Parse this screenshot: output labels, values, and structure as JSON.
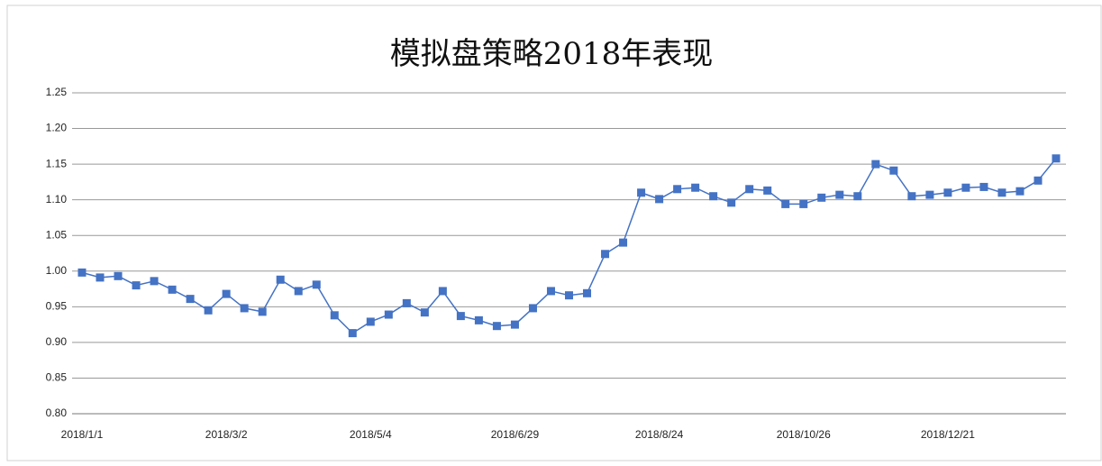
{
  "chart_data": {
    "type": "line",
    "title": "模拟盘策略2018年表现",
    "categories": [
      "2018/1/1",
      null,
      null,
      null,
      null,
      null,
      null,
      null,
      "2018/3/2",
      null,
      null,
      null,
      null,
      null,
      null,
      null,
      "2018/5/4",
      null,
      null,
      null,
      null,
      null,
      null,
      null,
      "2018/6/29",
      null,
      null,
      null,
      null,
      null,
      null,
      null,
      "2018/8/24",
      null,
      null,
      null,
      null,
      null,
      null,
      null,
      "2018/10/26",
      null,
      null,
      null,
      null,
      null,
      null,
      null,
      "2018/12/21",
      null,
      null,
      null,
      null,
      null,
      null
    ],
    "series": [
      {
        "color": "#4472c4",
        "values": [
          0.998,
          0.991,
          0.993,
          0.98,
          0.986,
          0.974,
          0.961,
          0.945,
          0.968,
          0.948,
          0.943,
          0.988,
          0.972,
          0.981,
          0.938,
          0.913,
          0.929,
          0.939,
          0.955,
          0.942,
          0.972,
          0.937,
          0.931,
          0.923,
          0.925,
          0.948,
          0.972,
          0.966,
          0.969,
          1.024,
          1.04,
          1.11,
          1.101,
          1.115,
          1.117,
          1.105,
          1.096,
          1.115,
          1.113,
          1.094,
          1.094,
          1.103,
          1.107,
          1.105,
          1.15,
          1.141,
          1.105,
          1.107,
          1.11,
          1.117,
          1.118,
          1.11,
          1.112,
          1.127,
          1.158
        ]
      }
    ],
    "ylim": [
      0.8,
      1.25
    ],
    "yticks": [
      {
        "value": 0.8,
        "label": "0.80"
      },
      0.85,
      {
        "value": 0.9,
        "label": "0.90"
      },
      0.95,
      {
        "value": 1.0,
        "label": "1.00"
      },
      1.05,
      {
        "value": 1.1,
        "label": "1.10"
      },
      1.15,
      {
        "value": 1.2,
        "label": "1.20"
      },
      1.25
    ],
    "grid": true
  }
}
